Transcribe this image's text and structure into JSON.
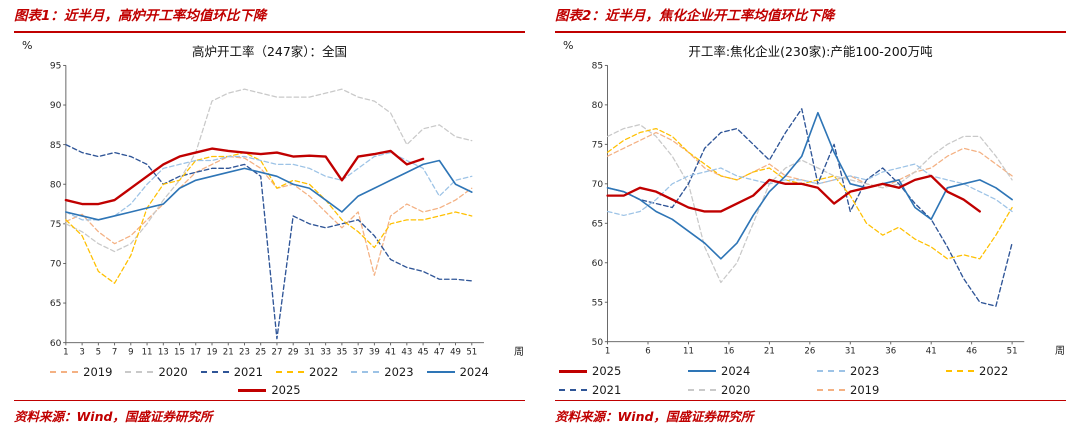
{
  "brand_red": "#c00000",
  "figures": [
    {
      "header": "图表1：近半月，高炉开工率均值环比下降",
      "source": "资料来源：Wind，国盛证券研究所"
    },
    {
      "header": "图表2：近半月，焦化企业开工率均值环比下降",
      "source": "资料来源：Wind，国盛证券研究所"
    }
  ],
  "chart_data": [
    {
      "type": "line",
      "title": "高炉开工率（247家）：全国",
      "ylabel": "%",
      "xlabel": "周",
      "ylim": [
        60,
        95
      ],
      "ytick_step": 5,
      "xlim": [
        1,
        52.5
      ],
      "xticks": [
        1,
        3,
        5,
        7,
        9,
        11,
        13,
        15,
        17,
        19,
        21,
        23,
        25,
        27,
        29,
        31,
        33,
        35,
        37,
        39,
        41,
        43,
        45,
        47,
        49,
        51
      ],
      "grid": false,
      "legend_position": "bottom",
      "legend": {
        "layout": "row",
        "cols": 7,
        "order": [
          "2019",
          "2020",
          "2021",
          "2022",
          "2023",
          "2024",
          "2025"
        ]
      },
      "x": [
        1,
        3,
        5,
        7,
        9,
        11,
        13,
        15,
        17,
        19,
        21,
        23,
        25,
        27,
        29,
        31,
        33,
        35,
        37,
        39,
        41,
        43,
        45,
        47,
        49,
        51
      ],
      "series": [
        {
          "name": "2019",
          "color": "#f4b183",
          "dash": "dashed",
          "width": 1.4,
          "values": [
            75.3,
            76.2,
            74,
            72.5,
            73.5,
            75.5,
            77.5,
            79.5,
            81.5,
            82.5,
            83.5,
            83.3,
            82,
            79.5,
            80,
            78.5,
            76.5,
            74.5,
            76.5,
            68.5,
            76,
            77.5,
            76.5,
            77,
            78,
            79.5
          ]
        },
        {
          "name": "2020",
          "color": "#c9c9c9",
          "dash": "dashed",
          "width": 1.4,
          "values": [
            75,
            74,
            72.5,
            71.5,
            72.5,
            75,
            78,
            80.5,
            84,
            90.5,
            91.5,
            92,
            91.5,
            91,
            91,
            91,
            91.5,
            92,
            91,
            90.5,
            89,
            85,
            87,
            87.5,
            86,
            85.5
          ]
        },
        {
          "name": "2021",
          "color": "#2f5597",
          "dash": "dashed",
          "width": 1.5,
          "values": [
            85,
            84,
            83.5,
            84,
            83.5,
            82.5,
            80,
            81,
            81.5,
            82,
            82,
            82.5,
            81,
            60.5,
            76,
            75,
            74.5,
            75,
            75.5,
            73.5,
            70.5,
            69.5,
            69,
            68,
            68,
            67.8
          ]
        },
        {
          "name": "2022",
          "color": "#ffc000",
          "dash": "dashed",
          "width": 1.4,
          "values": [
            75.5,
            73.5,
            69,
            67.5,
            71,
            77,
            80,
            80.5,
            83,
            83.5,
            83.5,
            84,
            83,
            79.5,
            80.5,
            80,
            78,
            75.5,
            74,
            72,
            75,
            75.5,
            75.5,
            76,
            76.5,
            76
          ]
        },
        {
          "name": "2023",
          "color": "#9dc3e6",
          "dash": "dashed",
          "width": 1.4,
          "values": [
            76.5,
            75.5,
            75.5,
            76,
            77.5,
            80,
            82,
            82.5,
            83,
            83,
            83.5,
            83.5,
            83,
            82.5,
            82.5,
            82,
            81,
            80.5,
            82,
            83.5,
            84,
            83,
            82,
            78.5,
            80.5,
            81
          ]
        },
        {
          "name": "2024",
          "color": "#2e75b6",
          "dash": "solid",
          "width": 1.8,
          "values": [
            76.5,
            76,
            75.5,
            76,
            76.5,
            77,
            77.5,
            79.5,
            80.5,
            81,
            81.5,
            82,
            81.5,
            81,
            80,
            79.5,
            78,
            76.5,
            78.5,
            79.5,
            80.5,
            81.5,
            82.5,
            83,
            80,
            79
          ]
        },
        {
          "name": "2025",
          "color": "#c00000",
          "dash": "solid",
          "width": 2.6,
          "values": [
            78,
            77.5,
            77.5,
            78,
            79.5,
            81,
            82.5,
            83.5,
            84,
            84.5,
            84.2,
            84,
            83.8,
            84,
            83.5,
            83.6,
            83.5,
            80.5,
            83.5,
            83.8,
            84.2,
            82.5,
            83.2,
            null,
            null,
            null
          ]
        }
      ]
    },
    {
      "type": "line",
      "title": "开工率:焦化企业(230家):产能100-200万吨",
      "ylabel": "%",
      "xlabel": "周",
      "ylim": [
        50,
        85
      ],
      "ytick_step": 5,
      "xlim": [
        1,
        52.5
      ],
      "xticks": [
        1,
        6,
        11,
        16,
        21,
        26,
        31,
        36,
        41,
        46,
        51
      ],
      "grid": false,
      "legend_position": "bottom",
      "legend": {
        "layout": "grid",
        "cols": 4,
        "order": [
          "2025",
          "2024",
          "2023",
          "2022",
          "2021",
          "2020",
          "2019"
        ]
      },
      "x": [
        1,
        3,
        5,
        7,
        9,
        11,
        13,
        15,
        17,
        19,
        21,
        23,
        25,
        27,
        29,
        31,
        33,
        35,
        37,
        39,
        41,
        43,
        45,
        47,
        49,
        51
      ],
      "series": [
        {
          "name": "2019",
          "color": "#f4b183",
          "dash": "dashed",
          "width": 1.4,
          "values": [
            73.5,
            74.5,
            75.5,
            76.5,
            75.5,
            74,
            72,
            71,
            70.5,
            71.5,
            72.5,
            71,
            70.5,
            70,
            70.5,
            71,
            70,
            69.5,
            70.5,
            71.5,
            72,
            73.5,
            74.5,
            74,
            72.5,
            71
          ]
        },
        {
          "name": "2020",
          "color": "#c9c9c9",
          "dash": "dashed",
          "width": 1.4,
          "values": [
            76,
            77,
            77.5,
            76,
            73.5,
            70,
            62,
            57.5,
            60,
            65,
            70,
            72,
            73,
            72,
            71,
            70.5,
            70,
            69.5,
            70,
            71.5,
            73.5,
            75,
            76,
            76,
            73.5,
            70.5
          ]
        },
        {
          "name": "2021",
          "color": "#2f5597",
          "dash": "dashed",
          "width": 1.5,
          "values": [
            69.5,
            69,
            68,
            67.5,
            67,
            70,
            74.5,
            76.5,
            77,
            75,
            73,
            76.5,
            79.5,
            70,
            75,
            66.5,
            70.5,
            72,
            70,
            67.5,
            65.5,
            62,
            58,
            55,
            54.5,
            62.5
          ]
        },
        {
          "name": "2022",
          "color": "#ffc000",
          "dash": "dashed",
          "width": 1.4,
          "values": [
            74,
            75.5,
            76.5,
            77,
            76,
            74,
            72.5,
            71,
            70.5,
            71.5,
            72,
            70.5,
            70,
            70.5,
            71,
            68.5,
            65,
            63.5,
            64.5,
            63,
            62,
            60.5,
            61,
            60.5,
            63.5,
            67
          ]
        },
        {
          "name": "2023",
          "color": "#9dc3e6",
          "dash": "dashed",
          "width": 1.4,
          "values": [
            66.5,
            66,
            66.5,
            68,
            70,
            71,
            71.5,
            72,
            71,
            70.5,
            70,
            70.5,
            70.5,
            70,
            70.5,
            71,
            70.5,
            71.5,
            72,
            72.5,
            71,
            70.5,
            70,
            69,
            68,
            66.5
          ]
        },
        {
          "name": "2024",
          "color": "#2e75b6",
          "dash": "solid",
          "width": 1.8,
          "values": [
            69.5,
            69,
            68,
            66.5,
            65.5,
            64,
            62.5,
            60.5,
            62.5,
            66,
            69,
            71,
            73.5,
            79,
            74,
            70,
            69.5,
            70,
            70.5,
            67,
            65.5,
            69.5,
            70,
            70.5,
            69.5,
            68
          ]
        },
        {
          "name": "2025",
          "color": "#c00000",
          "dash": "solid",
          "width": 2.6,
          "values": [
            68.5,
            68.5,
            69.5,
            69,
            68,
            67,
            66.5,
            66.5,
            67.5,
            68.5,
            70.5,
            70,
            70,
            69.5,
            67.5,
            69,
            69.5,
            70,
            69.5,
            70.5,
            71,
            69,
            68,
            66.5,
            null,
            null
          ]
        }
      ]
    }
  ]
}
